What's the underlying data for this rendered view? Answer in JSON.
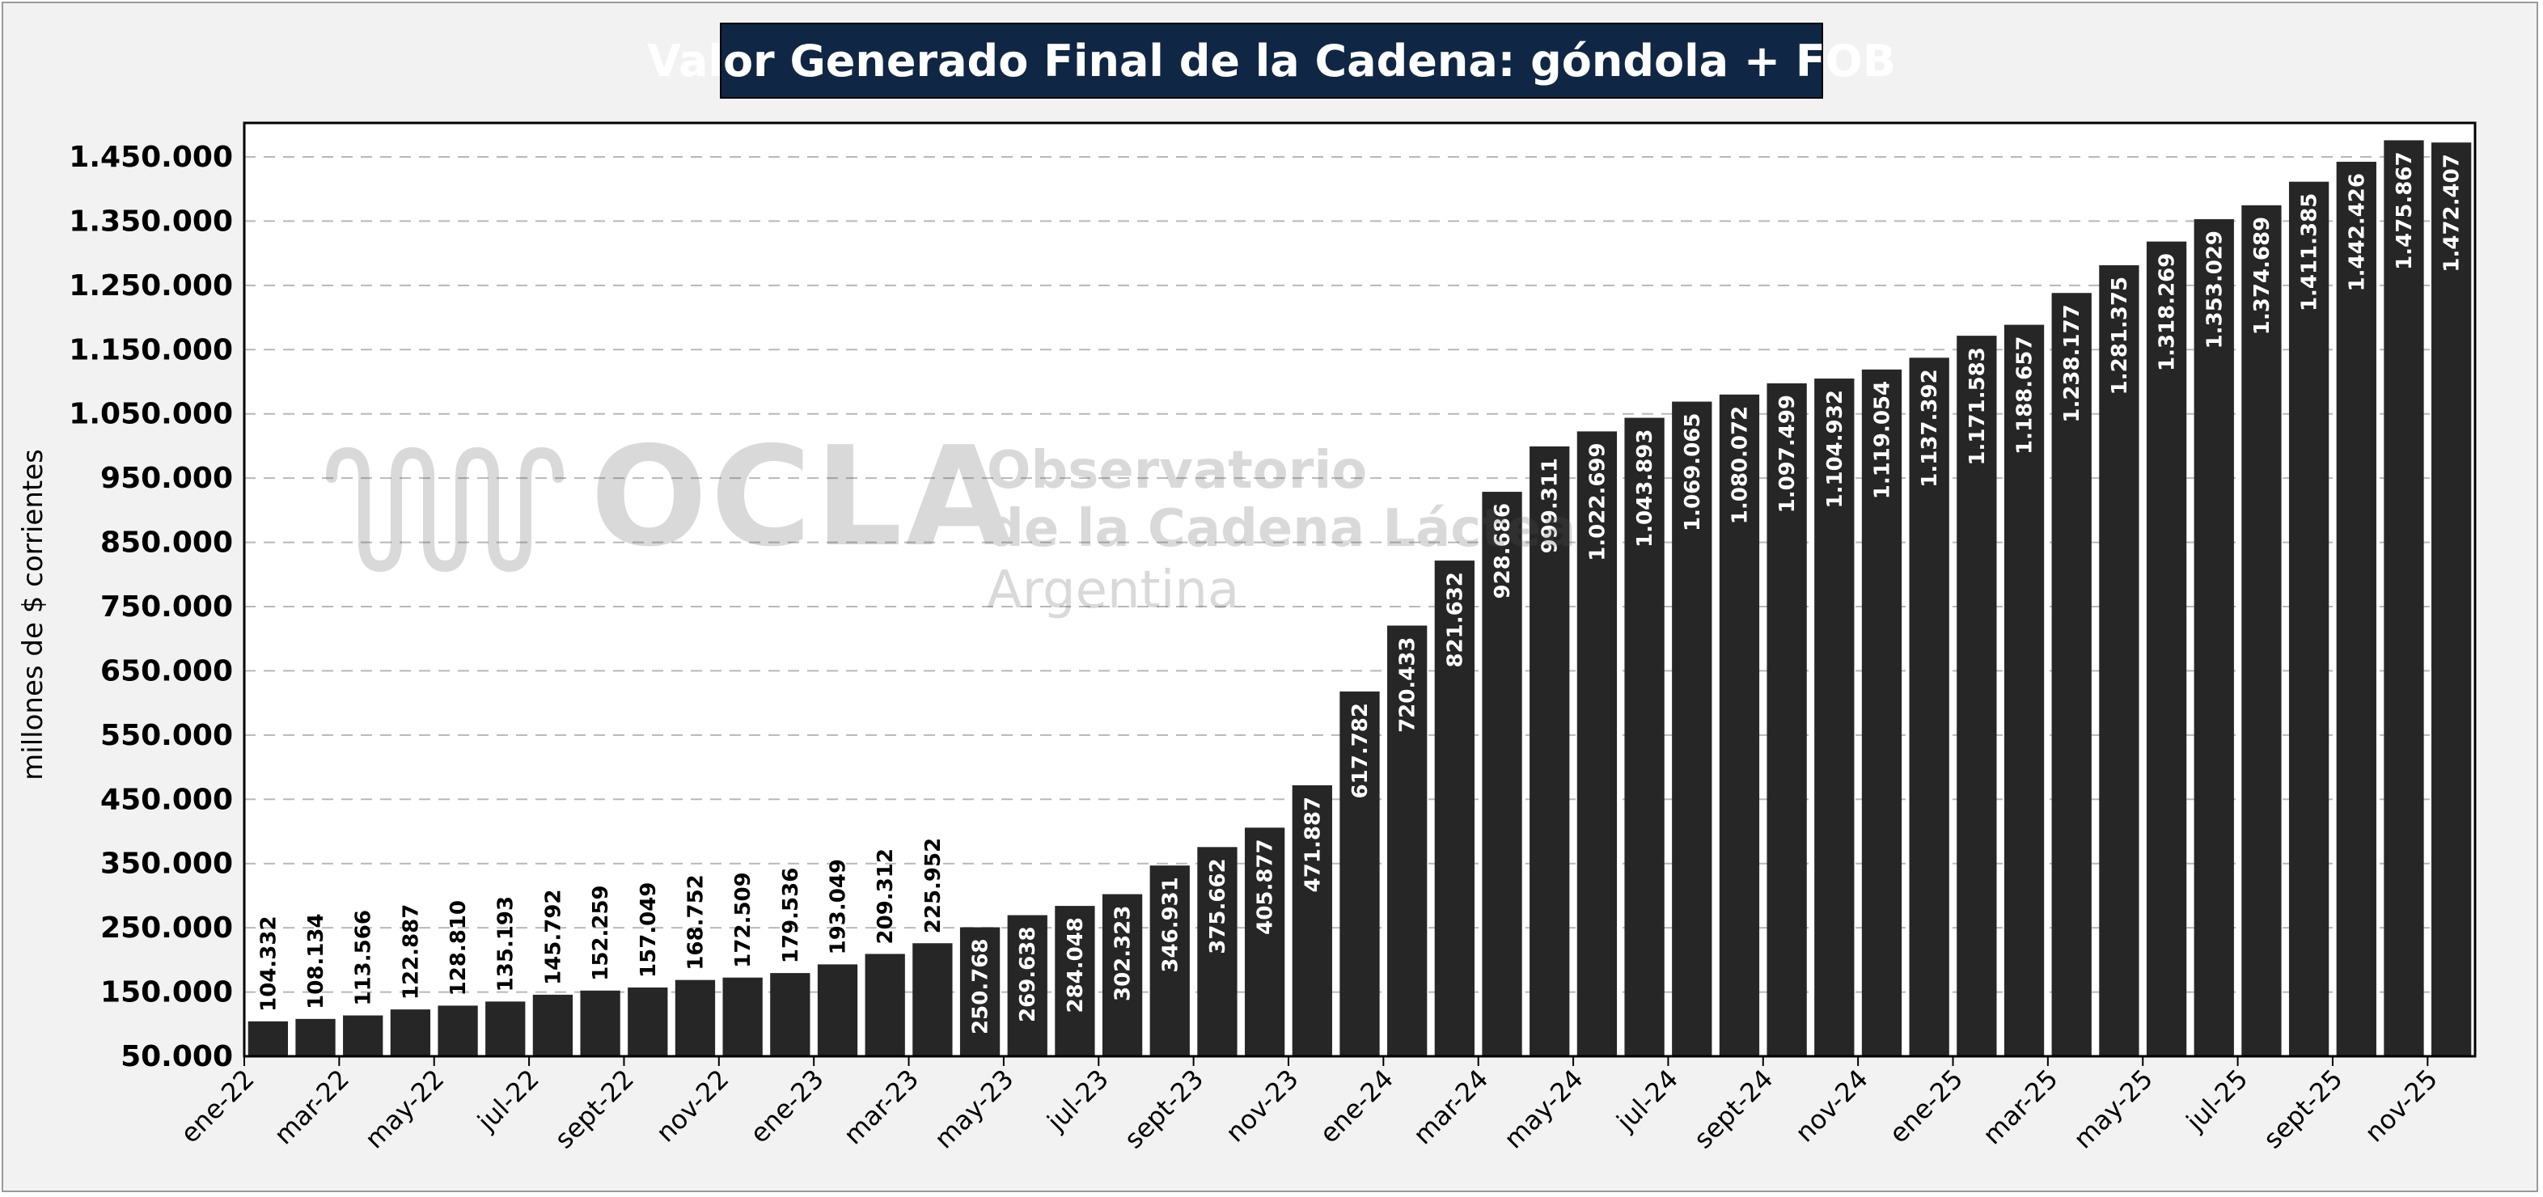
{
  "chart_data": {
    "type": "bar",
    "title": "Valor Generado Final de la Cadena: góndola + FOB",
    "ylabel": "millones de $ corrientes",
    "xlabel": "",
    "ylim": [
      50000,
      1500000
    ],
    "yticks": [
      "50.000",
      "150.000",
      "250.000",
      "350.000",
      "450.000",
      "550.000",
      "650.000",
      "750.000",
      "850.000",
      "950.000",
      "1.050.000",
      "1.150.000",
      "1.250.000",
      "1.350.000",
      "1.450.000"
    ],
    "ytick_values": [
      50000,
      150000,
      250000,
      350000,
      450000,
      550000,
      650000,
      750000,
      850000,
      950000,
      1050000,
      1150000,
      1250000,
      1350000,
      1450000
    ],
    "xtick_labels": [
      "ene-22",
      "mar-22",
      "may-22",
      "jul-22",
      "sept-22",
      "nov-22",
      "ene-23",
      "mar-23",
      "may-23",
      "jul-23",
      "sept-23",
      "nov-23",
      "ene-24",
      "mar-24",
      "may-24",
      "jul-24",
      "sept-24",
      "nov-24",
      "ene-25",
      "mar-25",
      "may-25",
      "jul-25",
      "sept-25",
      "nov-25"
    ],
    "values": [
      104332,
      108134,
      113566,
      122887,
      128810,
      135193,
      145792,
      152259,
      157049,
      168752,
      172509,
      179536,
      193049,
      209312,
      225952,
      250768,
      269638,
      284048,
      302323,
      346931,
      375662,
      405877,
      471887,
      617782,
      720433,
      821632,
      928686,
      999311,
      1022699,
      1043893,
      1069065,
      1080072,
      1097499,
      1104932,
      1119054,
      1137392,
      1171583,
      1188657,
      1238177,
      1281375,
      1318269,
      1353029,
      1374689,
      1411385,
      1442426,
      1475867,
      1472407
    ],
    "data_labels": [
      "104.332",
      "108.134",
      "113.566",
      "122.887",
      "128.810",
      "135.193",
      "145.792",
      "152.259",
      "157.049",
      "168.752",
      "172.509",
      "179.536",
      "193.049",
      "209.312",
      "225.952",
      "250.768",
      "269.638",
      "284.048",
      "302.323",
      "346.931",
      "375.662",
      "405.877",
      "471.887",
      "617.782",
      "720.433",
      "821.632",
      "928.686",
      "999.311",
      "1.022.699",
      "1.043.893",
      "1.069.065",
      "1.080.072",
      "1.097.499",
      "1.104.932",
      "1.119.054",
      "1.137.392",
      "1.171.583",
      "1.188.657",
      "1.238.177",
      "1.281.375",
      "1.318.269",
      "1.353.029",
      "1.374.689",
      "1.411.385",
      "1.442.426",
      "1.475.867",
      "1.472.407"
    ],
    "grid": "horizontal-dashed",
    "bar_color": "#262626",
    "legend": "none"
  },
  "watermark": {
    "brand": "OCLA",
    "line1": "Observatorio",
    "line2": "de la Cadena Láctea",
    "line3": "Argentina"
  }
}
